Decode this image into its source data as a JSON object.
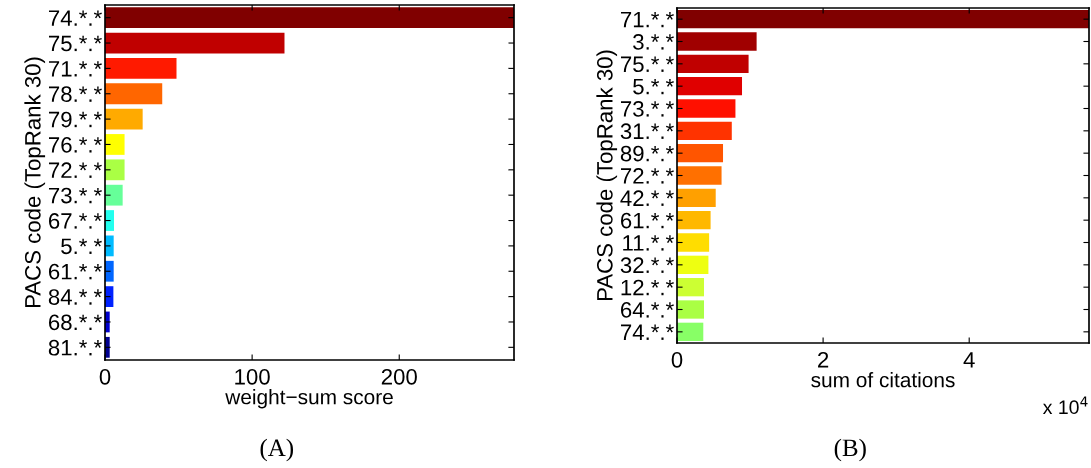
{
  "chart_data": [
    {
      "type": "bar",
      "orientation": "horizontal",
      "ylabel": "PACS code (TopRank 30)",
      "xlabel": "weight−sum score",
      "categories": [
        "74.*.*",
        "75.*.*",
        "71.*.*",
        "78.*.*",
        "79.*.*",
        "76.*.*",
        "72.*.*",
        "73.*.*",
        "67.*.*",
        "5.*.*",
        "61.*.*",
        "84.*.*",
        "68.*.*",
        "81.*.*"
      ],
      "values": [
        278,
        122,
        48.6,
        38.9,
        25.6,
        13.3,
        13.3,
        12,
        6.1,
        5.9,
        5.9,
        5.7,
        3.2,
        3.2
      ],
      "colors": [
        "#800000",
        "#c00000",
        "#ff1a00",
        "#ff6600",
        "#ffaa00",
        "#ffff00",
        "#aaff44",
        "#66ff99",
        "#22ffee",
        "#00bbff",
        "#0066ff",
        "#0022ff",
        "#0000cc",
        "#000090"
      ],
      "xlim": [
        0,
        278
      ],
      "xticks": [
        0,
        100,
        200
      ],
      "grid": false,
      "annotations": [
        "(A)"
      ]
    },
    {
      "type": "bar",
      "orientation": "horizontal",
      "ylabel": "PACS code (TopRank 30)",
      "xlabel": "sum of citations",
      "categories": [
        "71.*.*",
        "3.*.*",
        "75.*.*",
        "5.*.*",
        "73.*.*",
        "31.*.*",
        "89.*.*",
        "72.*.*",
        "42.*.*",
        "61.*.*",
        "11.*.*",
        "32.*.*",
        "12.*.*",
        "64.*.*",
        "74.*.*"
      ],
      "values": [
        5.64,
        1.09,
        0.98,
        0.89,
        0.8,
        0.75,
        0.63,
        0.61,
        0.53,
        0.46,
        0.44,
        0.43,
        0.37,
        0.37,
        0.36
      ],
      "colors": [
        "#800000",
        "#a00000",
        "#c00000",
        "#e00000",
        "#ff1000",
        "#ff3300",
        "#ff5500",
        "#ff7000",
        "#ffa000",
        "#ffb800",
        "#ffdd00",
        "#eeff11",
        "#ccff33",
        "#aaff44",
        "#88ff66"
      ],
      "xlim": [
        0,
        5.64
      ],
      "xticks": [
        0,
        2,
        4
      ],
      "grid": false,
      "annotations": [
        "x 10$^{4}$",
        "(B)"
      ]
    }
  ]
}
